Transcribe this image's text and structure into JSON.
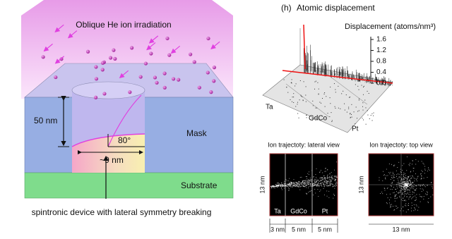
{
  "left_panel": {
    "title": "Oblique He ion irradiation",
    "height_label": "50 nm",
    "angle_label": "80°",
    "width_label": "~9 nm",
    "mask_label": "Mask",
    "substrate_label": "Substrate",
    "caption": "spintronic device with lateral symmetry breaking"
  },
  "displacement_panel": {
    "panel_letter": "(h)",
    "title": "Atomic displacement",
    "axis_label": "Displacement (atoms/nm³)",
    "ticks": [
      "1.6",
      "1.2",
      "0.8",
      "0.4",
      "0.0"
    ],
    "layers": [
      "Ta",
      "GdCo",
      "Pt"
    ]
  },
  "lateral_view": {
    "title": "Ion trajectoty: lateral view",
    "y_label": "13 nm",
    "layers": [
      "Ta",
      "GdCo",
      "Pt"
    ],
    "widths": [
      "3 nm",
      "5 nm",
      "5 nm"
    ]
  },
  "top_view": {
    "title": "Ion trajectoty: top view",
    "y_label": "13 nm",
    "x_label": "13 nm"
  }
}
